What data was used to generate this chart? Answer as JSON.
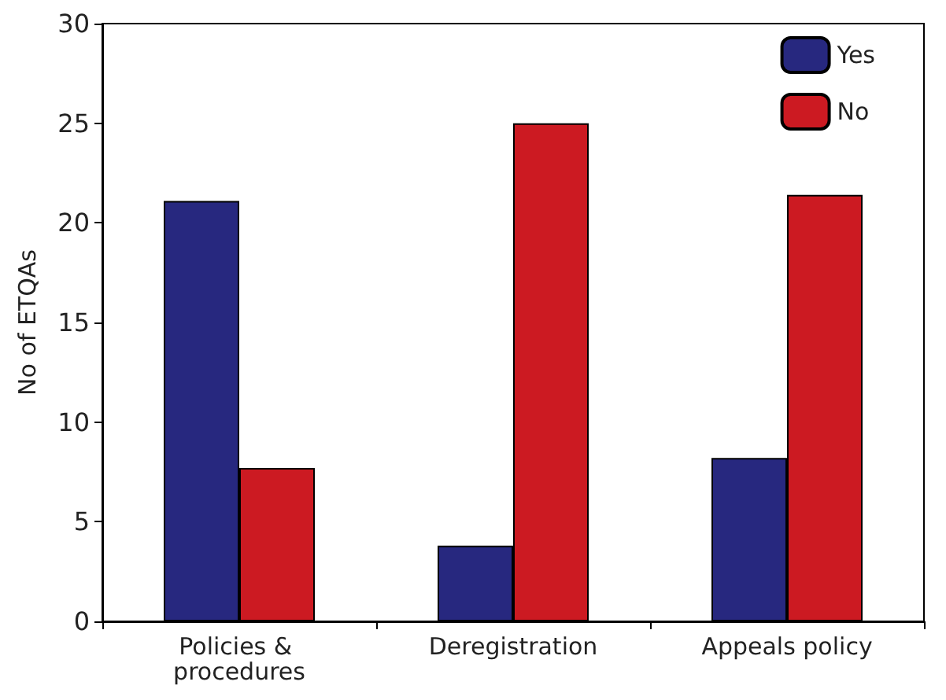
{
  "chart_data": {
    "type": "bar",
    "ylabel": "No of ETQAs",
    "categories": [
      "Policies & procedures",
      "Deregistration",
      "Appeals policy"
    ],
    "series": [
      {
        "name": "Yes",
        "color": "#27287f",
        "values": [
          21.1,
          3.8,
          8.2
        ]
      },
      {
        "name": "No",
        "color": "#cc1a22",
        "values": [
          7.7,
          25,
          21.4
        ]
      }
    ],
    "ylim": [
      0,
      30
    ],
    "yticks": [
      0,
      5,
      10,
      15,
      20,
      25,
      30
    ],
    "grid": false,
    "legend": "top right"
  }
}
